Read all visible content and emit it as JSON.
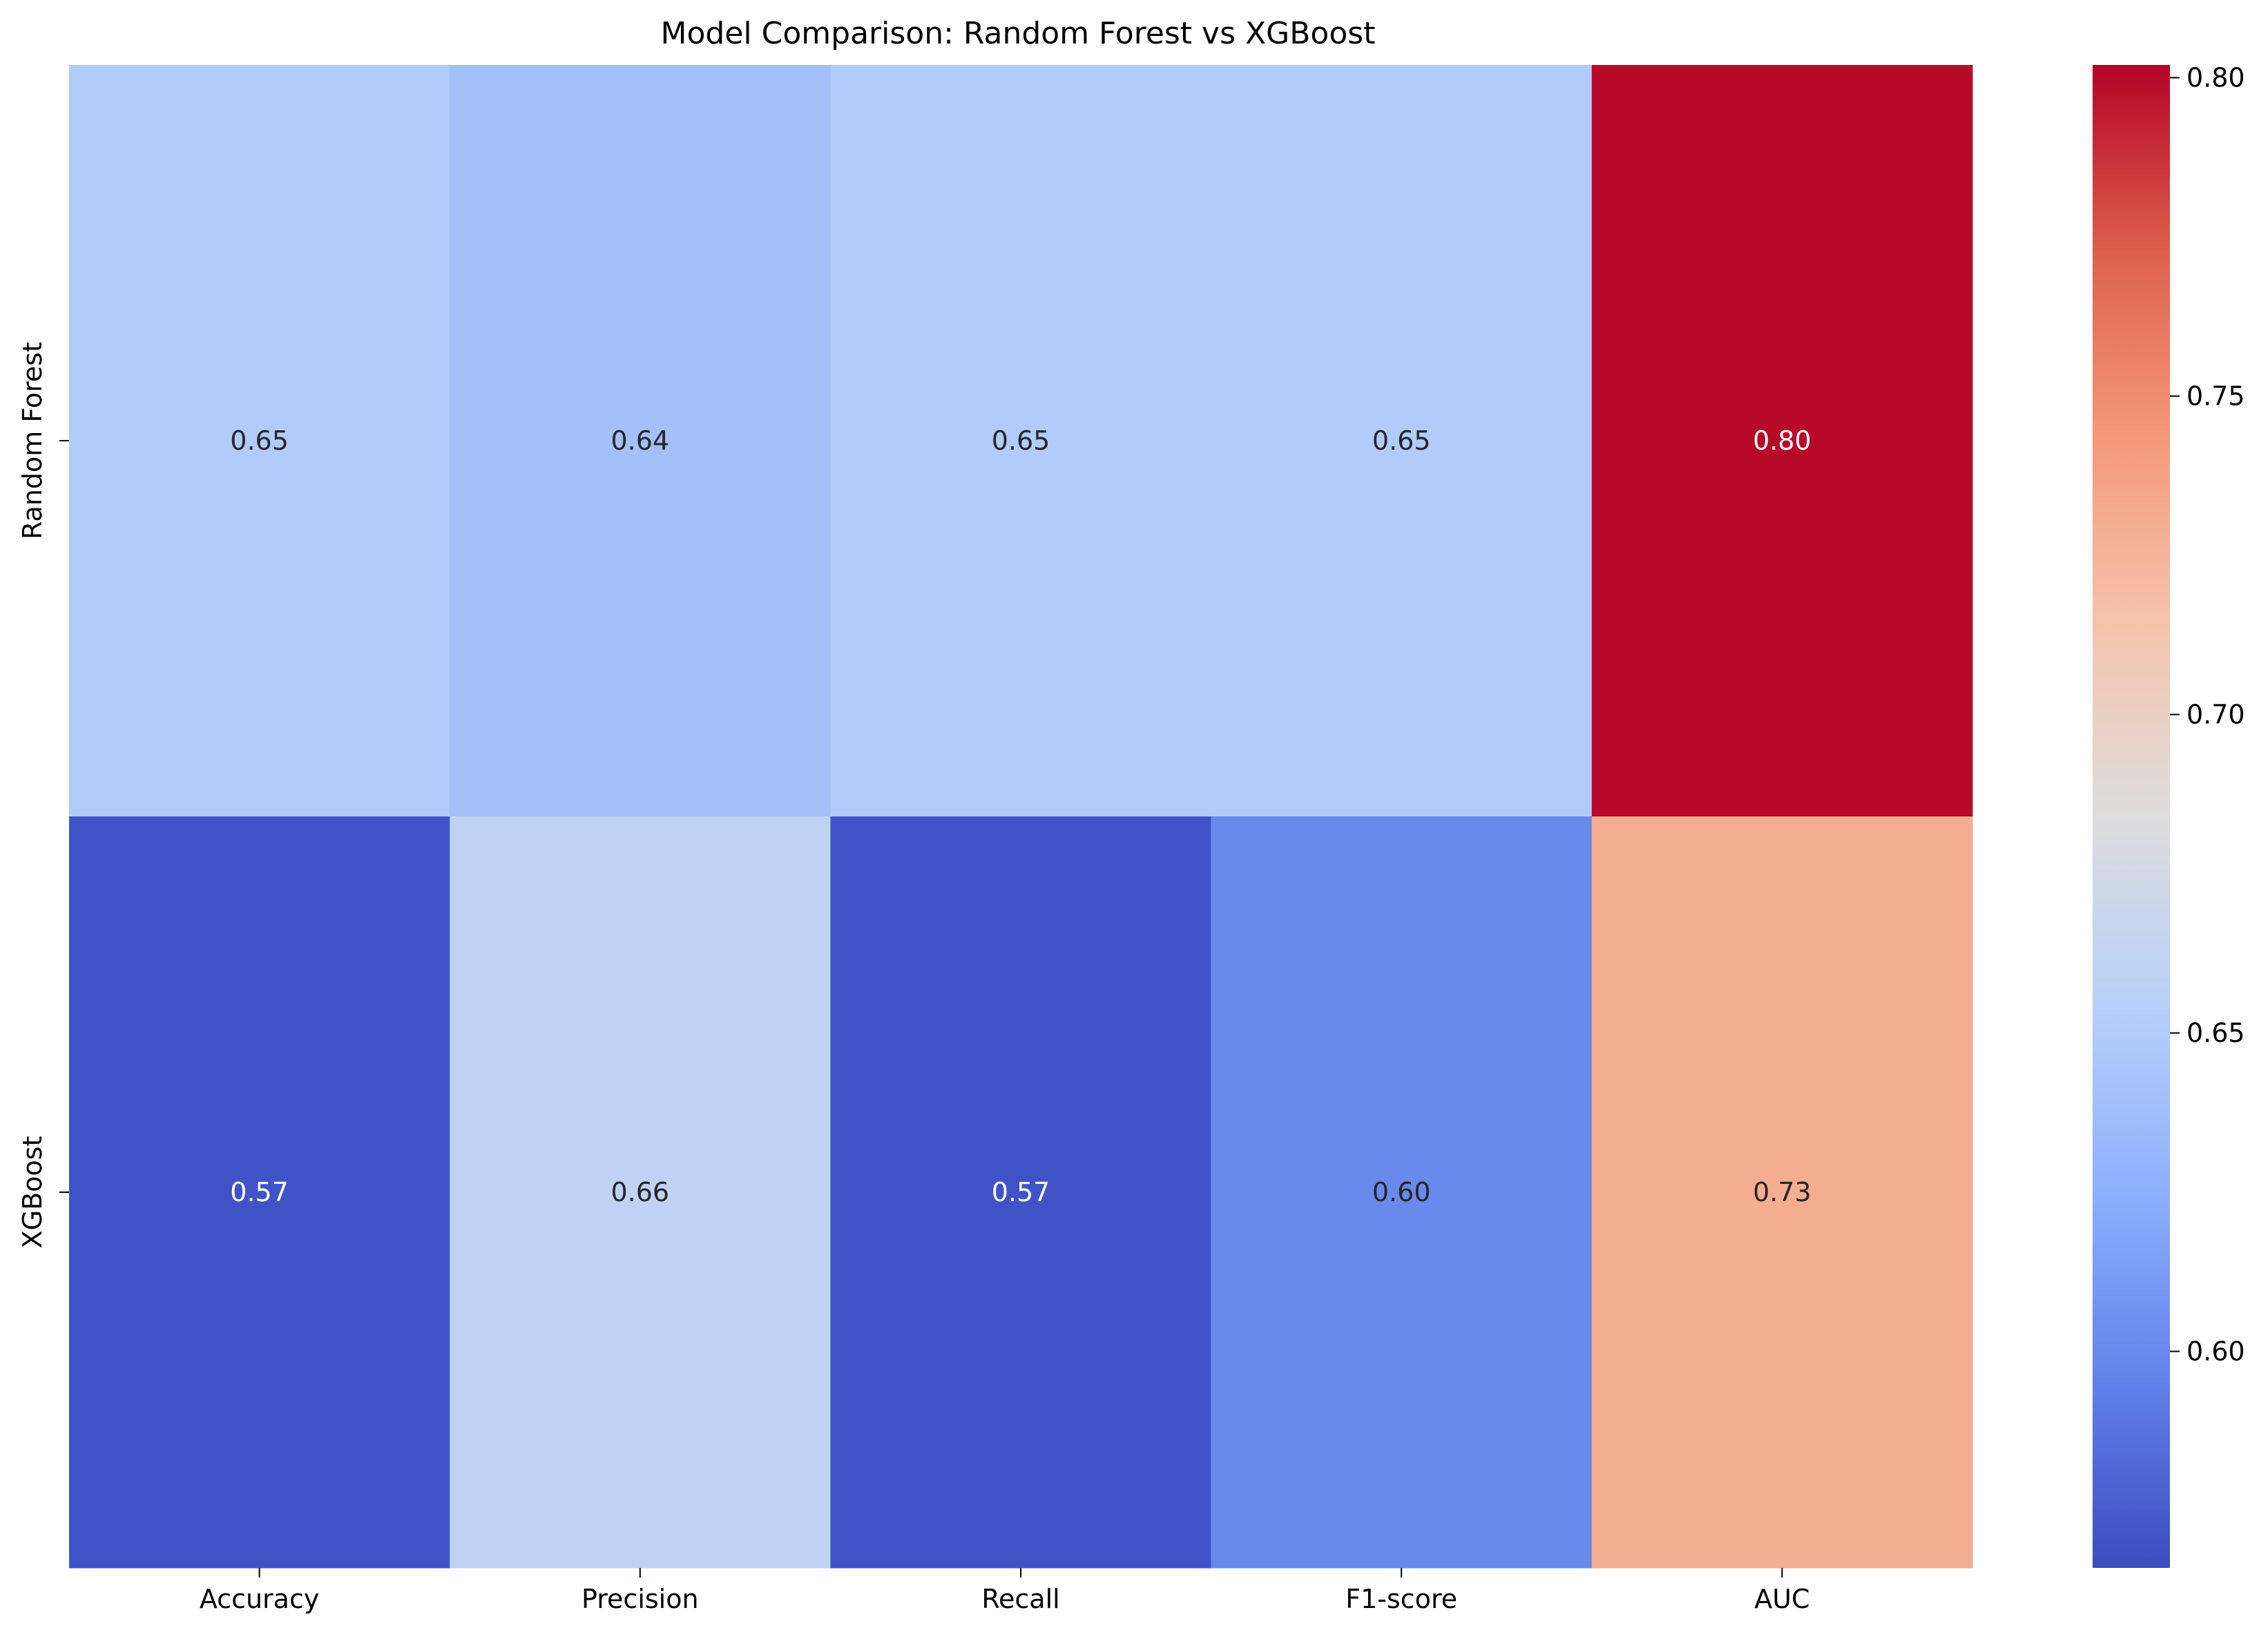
{
  "chart_data": {
    "type": "heatmap",
    "title": "Model Comparison: Random Forest vs XGBoost",
    "xlabel": "",
    "ylabel": "",
    "x_categories": [
      "Accuracy",
      "Precision",
      "Recall",
      "F1-score",
      "AUC"
    ],
    "y_categories": [
      "Random Forest",
      "XGBoost"
    ],
    "values": [
      [
        0.65,
        0.64,
        0.65,
        0.65,
        0.8
      ],
      [
        0.57,
        0.66,
        0.57,
        0.6,
        0.73
      ]
    ],
    "cell_labels": [
      [
        "0.65",
        "0.64",
        "0.65",
        "0.65",
        "0.80"
      ],
      [
        "0.57",
        "0.66",
        "0.57",
        "0.60",
        "0.73"
      ]
    ],
    "colormap": "coolwarm",
    "color_range": [
      0.566,
      0.802
    ],
    "colorbar_ticks": [
      0.6,
      0.65,
      0.7,
      0.75,
      0.8
    ],
    "colorbar_tick_labels": [
      "0.60",
      "0.65",
      "0.70",
      "0.75",
      "0.80"
    ],
    "grid": false,
    "legend": "colorbar-right"
  }
}
